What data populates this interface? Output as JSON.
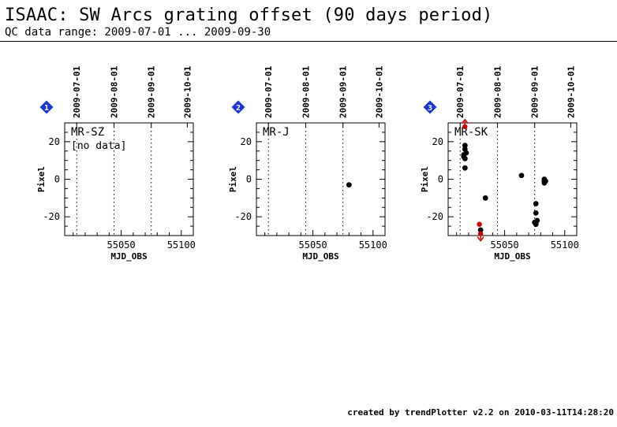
{
  "title": "ISAAC: SW Arcs grating offset (90 days period)",
  "subtitle": "QC data range: 2009-07-01 ... 2009-09-30",
  "footer": "created by trendPlotter v2.2 on 2010-03-11T14:28:20",
  "colors": {
    "axis": "#000000",
    "point": "#000000",
    "outlier": "#cc0000",
    "marker": "#1a35d6"
  },
  "chart_data": [
    {
      "type": "scatter",
      "panel_number": "1",
      "label": "MR-SZ",
      "note": "[no data]",
      "xlabel": "MJD_OBS",
      "ylabel": "Pixel",
      "xlim": [
        55003,
        55110
      ],
      "ylim": [
        -30,
        30
      ],
      "xticks": [
        55050,
        55100
      ],
      "yticks": [
        20,
        0,
        -20
      ],
      "date_ticks": [
        {
          "label": "2009-07-01",
          "mjd": 55013
        },
        {
          "label": "2009-08-01",
          "mjd": 55044
        },
        {
          "label": "2009-09-01",
          "mjd": 55075
        },
        {
          "label": "2009-10-01",
          "mjd": 55105
        }
      ],
      "vlines": [
        55013,
        55044,
        55075
      ],
      "points": [],
      "outliers": []
    },
    {
      "type": "scatter",
      "panel_number": "2",
      "label": "MR-J",
      "note": "",
      "xlabel": "MJD_OBS",
      "ylabel": "Pixel",
      "xlim": [
        55003,
        55110
      ],
      "ylim": [
        -30,
        30
      ],
      "xticks": [
        55050,
        55100
      ],
      "yticks": [
        20,
        0,
        -20
      ],
      "date_ticks": [
        {
          "label": "2009-07-01",
          "mjd": 55013
        },
        {
          "label": "2009-08-01",
          "mjd": 55044
        },
        {
          "label": "2009-09-01",
          "mjd": 55075
        },
        {
          "label": "2009-10-01",
          "mjd": 55105
        }
      ],
      "vlines": [
        55013,
        55044,
        55075
      ],
      "points": [
        [
          55080,
          -3
        ]
      ],
      "outliers": []
    },
    {
      "type": "scatter",
      "panel_number": "3",
      "label": "MR-SK",
      "note": "",
      "xlabel": "MJD_OBS",
      "ylabel": "Pixel",
      "xlim": [
        55003,
        55110
      ],
      "ylim": [
        -30,
        30
      ],
      "xticks": [
        55050,
        55100
      ],
      "yticks": [
        20,
        0,
        -20
      ],
      "date_ticks": [
        {
          "label": "2009-07-01",
          "mjd": 55013
        },
        {
          "label": "2009-08-01",
          "mjd": 55044
        },
        {
          "label": "2009-09-01",
          "mjd": 55075
        },
        {
          "label": "2009-10-01",
          "mjd": 55105
        }
      ],
      "vlines": [
        55013,
        55044,
        55075
      ],
      "points": [
        [
          55017,
          18
        ],
        [
          55017,
          16
        ],
        [
          55016,
          13
        ],
        [
          55016,
          12
        ],
        [
          55017,
          11
        ],
        [
          55018,
          14
        ],
        [
          55017,
          6
        ],
        [
          55034,
          -10
        ],
        [
          55030,
          -27
        ],
        [
          55064,
          2
        ],
        [
          55076,
          -13
        ],
        [
          55076,
          -18
        ],
        [
          55075,
          -23
        ],
        [
          55077,
          -22
        ],
        [
          55076,
          -24
        ],
        [
          55083,
          0
        ],
        [
          55083,
          -1
        ],
        [
          55083,
          -2
        ],
        [
          55084,
          -1
        ]
      ],
      "outliers": [
        {
          "x": 55017,
          "y": 28,
          "dir": "up"
        },
        {
          "x": 55029,
          "y": -24,
          "dir": "none"
        },
        {
          "x": 55030,
          "y": -29,
          "dir": "down"
        }
      ]
    }
  ]
}
